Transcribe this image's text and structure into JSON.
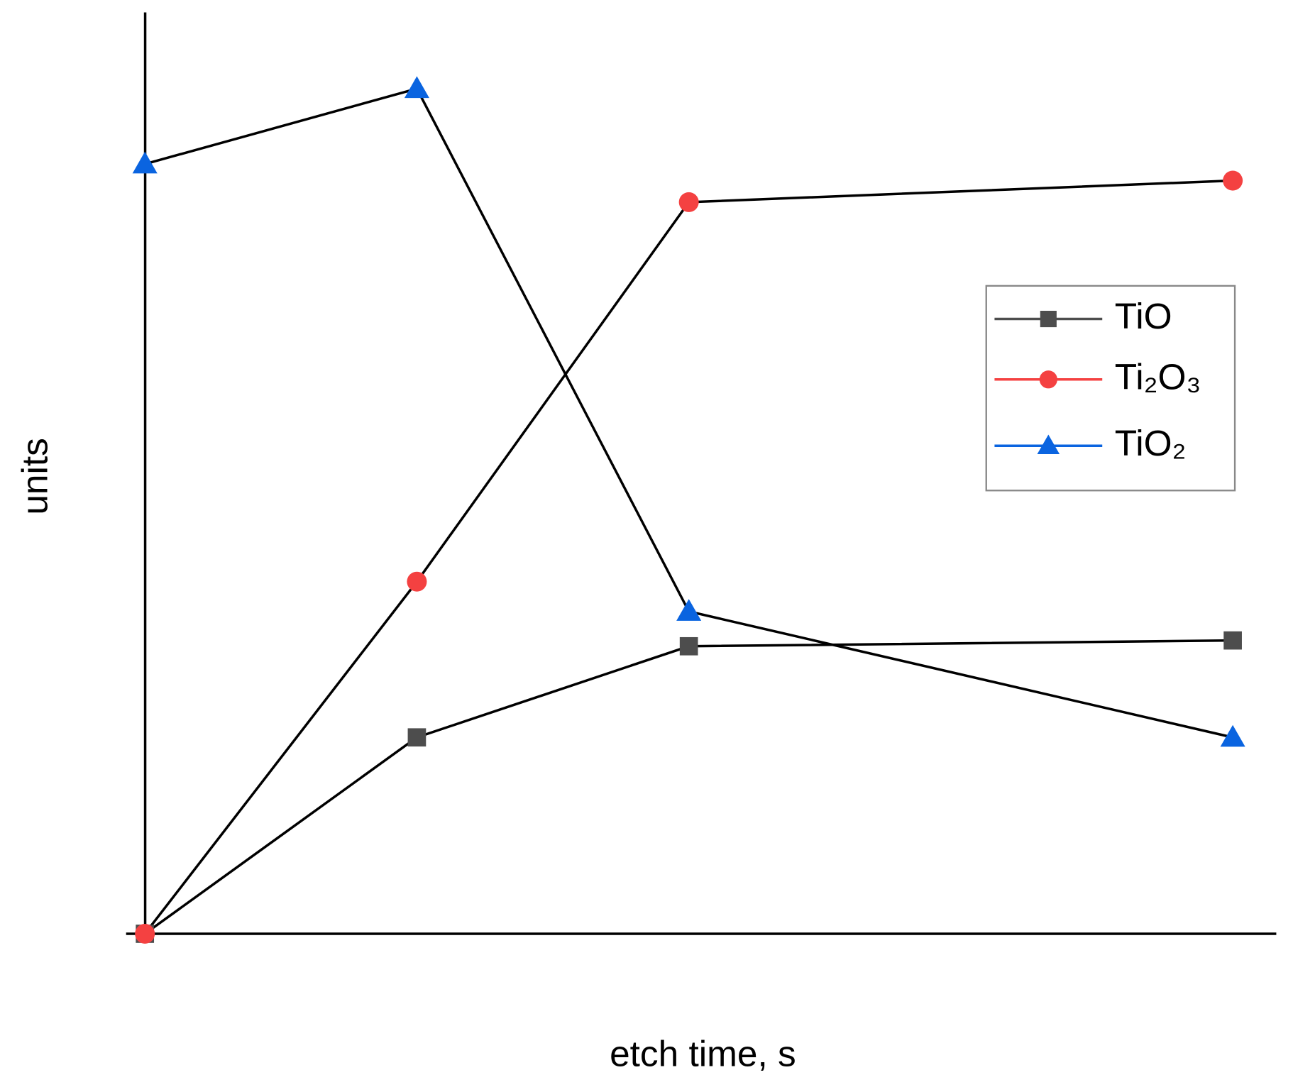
{
  "chart_data": {
    "type": "line",
    "xlabel": "etch time, s",
    "ylabel": "units",
    "x": [
      0,
      1,
      2,
      4
    ],
    "xlim": [
      -0.06,
      4.16
    ],
    "ylim": [
      0,
      111.2
    ],
    "line_color": "#000000",
    "legend": "upper right",
    "series": [
      {
        "name": "TiO",
        "color": "#4d4d4d",
        "marker": "square",
        "values": [
          0,
          23.7,
          34.7,
          35.4
        ]
      },
      {
        "name": "Ti₂O₃",
        "color": "#f44141",
        "marker": "circle",
        "values": [
          0,
          42.5,
          88.3,
          90.9
        ]
      },
      {
        "name": "TiO₂",
        "color": "#0a64e0",
        "marker": "triangle",
        "values": [
          92.9,
          102,
          38.9,
          23.7
        ]
      }
    ]
  }
}
